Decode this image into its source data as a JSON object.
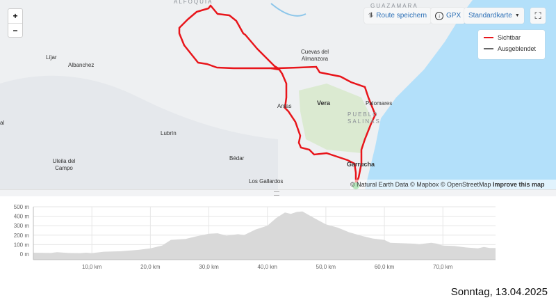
{
  "map": {
    "places": [
      {
        "name": "ALFOQUIA",
        "x": "ALFOQUIA"
      },
      {
        "name": "GUAZAMARA"
      },
      {
        "name": "Líjar"
      },
      {
        "name": "Albanchez"
      },
      {
        "name": "Cuevas del Almanzora"
      },
      {
        "name": "Antas"
      },
      {
        "name": "Vera"
      },
      {
        "name": "Palomares"
      },
      {
        "name": "PUEBLO SALINAS"
      },
      {
        "name": "Lubrín"
      },
      {
        "name": "Bédar"
      },
      {
        "name": "Uleila del Campo"
      },
      {
        "name": "Garrucha"
      },
      {
        "name": "Los Gallardos"
      },
      {
        "name": "al"
      }
    ],
    "zoom_in": "+",
    "zoom_out": "−",
    "route_save": "Route speichern",
    "gpx": "GPX",
    "map_style": "Standardkarte",
    "legend": {
      "visible": "Sichtbar",
      "hidden": "Ausgeblendet",
      "visible_color": "#e8151b",
      "hidden_color": "#666666"
    },
    "attribution": {
      "text": "© Natural Earth Data © Mapbox © OpenStreetMap",
      "improve": "Improve this map"
    },
    "route_color": "#e8151b",
    "start_color": "#4cc35a",
    "sea_color": "#b3e0fa"
  },
  "chart_data": {
    "type": "area",
    "xlim": [
      0,
      79
    ],
    "ylim": [
      0,
      500
    ],
    "x_ticks": [
      "10,0 km",
      "20,0 km",
      "30,0 km",
      "40,0 km",
      "50,0 km",
      "60,0 km",
      "70,0 km"
    ],
    "y_ticks": [
      "500 m",
      "400 m",
      "300 m",
      "200 m",
      "100 m",
      "0 m"
    ],
    "grid": true,
    "fill_color": "#d9d9d9",
    "points": [
      [
        0,
        15
      ],
      [
        3,
        12
      ],
      [
        4,
        20
      ],
      [
        6,
        12
      ],
      [
        8,
        10
      ],
      [
        9,
        15
      ],
      [
        10,
        10
      ],
      [
        12,
        25
      ],
      [
        15,
        30
      ],
      [
        18,
        45
      ],
      [
        20,
        60
      ],
      [
        22,
        90
      ],
      [
        23.5,
        150
      ],
      [
        26,
        160
      ],
      [
        28,
        190
      ],
      [
        30,
        215
      ],
      [
        31.5,
        220
      ],
      [
        33,
        195
      ],
      [
        35,
        210
      ],
      [
        36,
        200
      ],
      [
        38,
        260
      ],
      [
        40,
        300
      ],
      [
        41.5,
        380
      ],
      [
        43,
        440
      ],
      [
        44,
        425
      ],
      [
        45,
        445
      ],
      [
        46,
        450
      ],
      [
        48,
        380
      ],
      [
        50,
        315
      ],
      [
        52,
        280
      ],
      [
        54,
        230
      ],
      [
        56,
        195
      ],
      [
        58,
        165
      ],
      [
        60,
        150
      ],
      [
        61,
        120
      ],
      [
        63,
        115
      ],
      [
        65,
        110
      ],
      [
        66,
        105
      ],
      [
        68,
        120
      ],
      [
        69,
        110
      ],
      [
        70,
        90
      ],
      [
        72,
        85
      ],
      [
        74,
        70
      ],
      [
        76,
        60
      ],
      [
        77,
        75
      ],
      [
        78,
        65
      ],
      [
        79,
        65
      ]
    ]
  },
  "date": "Sonntag, 13.04.2025"
}
